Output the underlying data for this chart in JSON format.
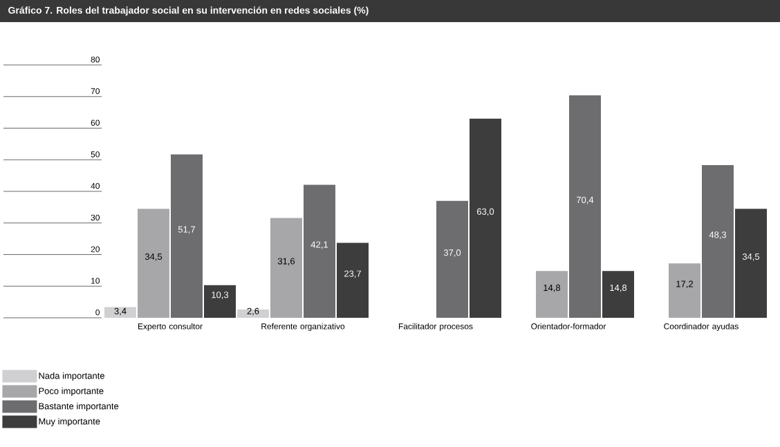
{
  "chart_data": {
    "type": "bar",
    "title": "Gráfico 7. Roles del trabajador social en su intervención en redes sociales (%)",
    "categories": [
      "Experto consultor",
      "Referente organizativo",
      "Facilitador procesos",
      "Orientador-formador",
      "Coordinador ayudas"
    ],
    "series": [
      {
        "name": "Nada importante",
        "color": "#d0d0d2",
        "values": [
          3.4,
          2.6,
          null,
          null,
          null
        ],
        "value_labels": [
          "3,4",
          "2,6",
          null,
          null,
          null
        ]
      },
      {
        "name": "Poco importante",
        "color": "#a7a7aa",
        "values": [
          34.5,
          31.6,
          null,
          14.8,
          17.2
        ],
        "value_labels": [
          "34,5",
          "31,6",
          null,
          "14,8",
          "17,2"
        ]
      },
      {
        "name": "Bastante importante",
        "color": "#6d6d70",
        "values": [
          51.7,
          42.1,
          37.0,
          70.4,
          48.3
        ],
        "value_labels": [
          "51,7",
          "42,1",
          "37,0",
          "70,4",
          "48,3"
        ]
      },
      {
        "name": "Muy importante",
        "color": "#3d3d3d",
        "values": [
          10.3,
          23.7,
          63.0,
          14.8,
          34.5
        ],
        "value_labels": [
          "10,3",
          "23,7",
          "63,0",
          "14,8",
          "34,5"
        ]
      }
    ],
    "ylim": [
      0,
      80
    ],
    "yticks": [
      0,
      10,
      20,
      30,
      40,
      50,
      60,
      70,
      80
    ],
    "grid": false,
    "legend": "bottom left"
  }
}
